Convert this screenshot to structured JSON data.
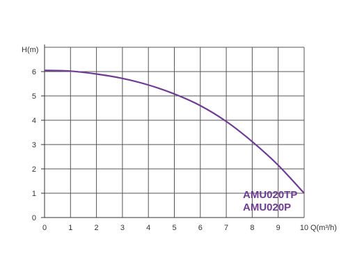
{
  "chart_data": {
    "type": "line",
    "title": "",
    "xlabel": "Q(m³/h)",
    "ylabel": "H(m)",
    "xlim": [
      0,
      10
    ],
    "ylim": [
      0,
      7
    ],
    "x_ticks": [
      0,
      1,
      2,
      3,
      4,
      5,
      6,
      7,
      8,
      9,
      10
    ],
    "y_ticks": [
      0,
      1,
      2,
      3,
      4,
      5,
      6
    ],
    "grid": true,
    "colors": {
      "curve": "#6e3c92",
      "grid": "#555555",
      "axis": "#333333"
    },
    "series": [
      {
        "x": [
          0,
          1,
          2,
          3,
          4,
          5,
          6,
          7,
          8,
          9,
          10
        ],
        "y": [
          6.05,
          6.02,
          5.9,
          5.72,
          5.45,
          5.08,
          4.6,
          3.95,
          3.12,
          2.15,
          1.0
        ]
      }
    ],
    "legend_placement": "bottom-right",
    "annotations": [
      "AMU020TP",
      "AMU020P"
    ]
  }
}
